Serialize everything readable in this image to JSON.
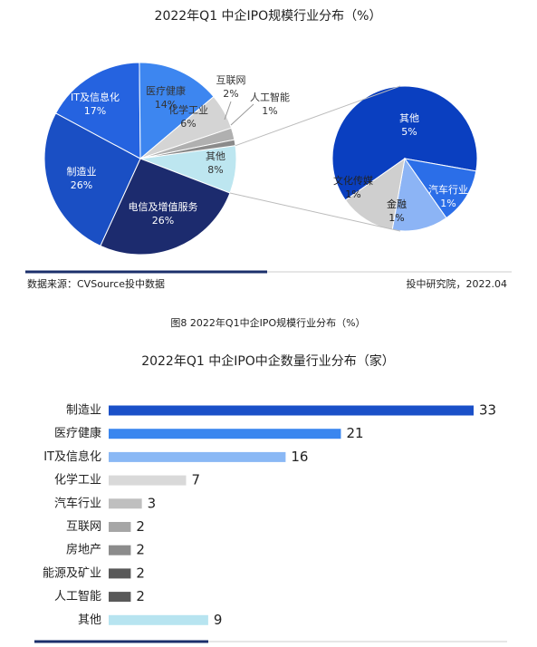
{
  "source": "数据来源：CVSource投中数据",
  "publisher": "投中研究院，2022.04",
  "caption": "图8 2022年Q1中企IPO规模行业分布（%）",
  "chart_data": [
    {
      "type": "pie-of-pie",
      "title": "2022年Q1 中企IPO规模行业分布（%）",
      "categories": [
        "其他",
        "电信及增值服务",
        "制造业",
        "IT及信息化",
        "医疗健康",
        "化学工业",
        "互联网",
        "人工智能"
      ],
      "values": [
        8,
        26,
        26,
        17,
        14,
        6,
        2,
        1
      ],
      "value_labels": [
        "8%",
        "26%",
        "26%",
        "17%",
        "14%",
        "6%",
        "2%",
        "1%"
      ],
      "colors": [
        "#bde6f0",
        "#1c2b6e",
        "#1a4fc4",
        "#2563e0",
        "#3d86f0",
        "#d4d4d4",
        "#b0b0b0",
        "#8a8a8a"
      ],
      "breakdown": {
        "categories": [
          "其他",
          "汽车行业",
          "金融",
          "文化传媒"
        ],
        "values": [
          5,
          1,
          1,
          1
        ],
        "value_labels": [
          "5%",
          "1%",
          "1%",
          "1%"
        ],
        "colors": [
          "#0a3fc0",
          "#2b6ee8",
          "#8cb4f5",
          "#cfcfcf"
        ]
      }
    },
    {
      "type": "hbar",
      "title": "2022年Q1 中企IPO中企数量行业分布（家）",
      "categories": [
        "制造业",
        "医疗健康",
        "IT及信息化",
        "化学工业",
        "汽车行业",
        "互联网",
        "房地产",
        "能源及矿业",
        "人工智能",
        "其他"
      ],
      "values": [
        33,
        21,
        16,
        7,
        3,
        2,
        2,
        2,
        2,
        9
      ],
      "colors": [
        "#1a50c8",
        "#3a86ef",
        "#8ab8f5",
        "#d9d9d9",
        "#bfbfbf",
        "#a6a6a6",
        "#8c8c8c",
        "#595959",
        "#595959",
        "#b7e4f0"
      ]
    }
  ]
}
